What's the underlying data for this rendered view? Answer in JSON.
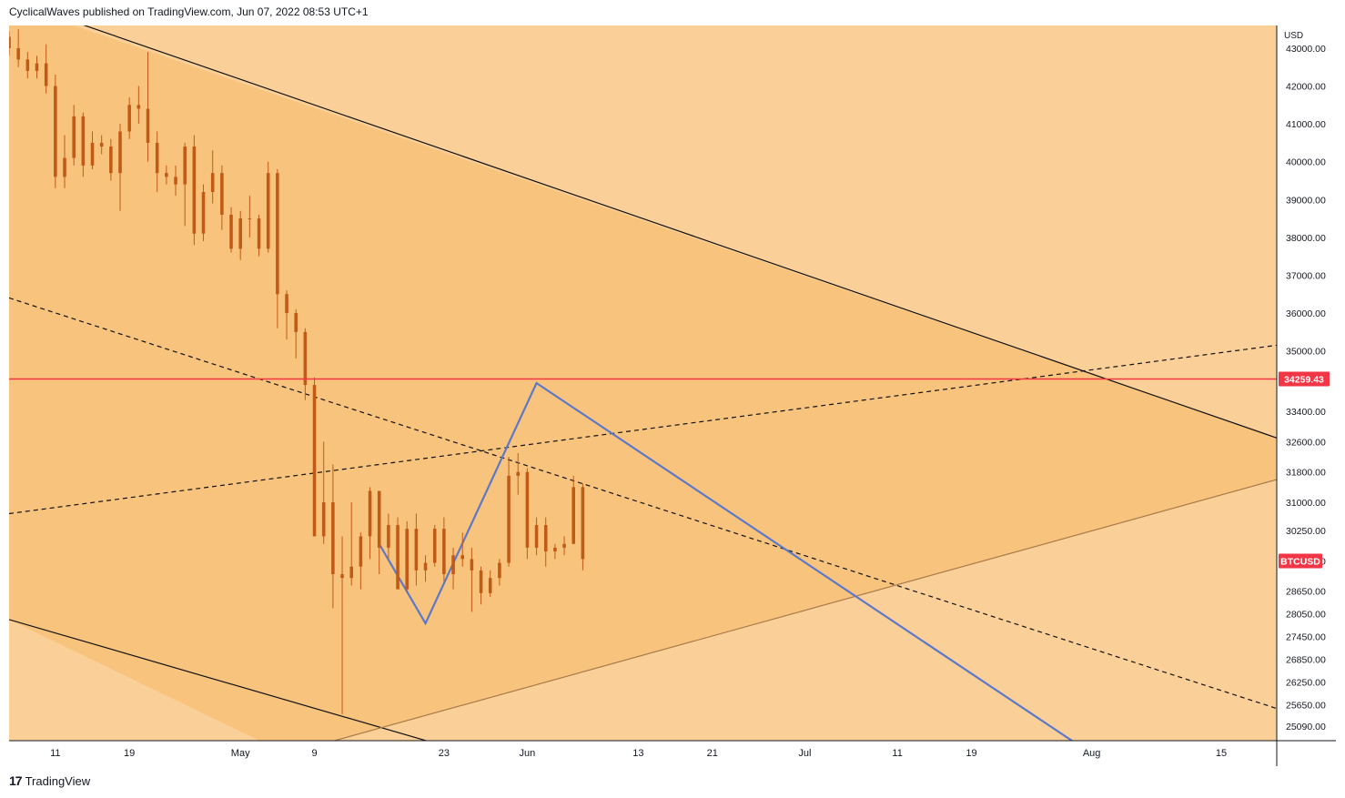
{
  "header": {
    "attribution": "CyclicalWaves published on TradingView.com, Jun 07, 2022 08:53 UTC+1"
  },
  "footer": {
    "brand": "TradingView",
    "logo_text": "17"
  },
  "colors": {
    "background_light": "#fbd098",
    "background_dark": "#f8c47d",
    "candle": "#c05a14",
    "red_line": "#f23645",
    "blue_line": "#5e78c8",
    "trend_line": "#111111",
    "lower_support": "#a97a49"
  },
  "chart_data": {
    "type": "candlestick",
    "symbol": "BTCUSD",
    "price_scale_currency": "USD",
    "horizontal_level": 34259.43,
    "ylim": [
      24700,
      43600
    ],
    "y_ticks": [
      "43000.00",
      "42000.00",
      "41000.00",
      "40000.00",
      "39000.00",
      "38000.00",
      "37000.00",
      "36000.00",
      "35000.00",
      "33400.00",
      "32600.00",
      "31800.00",
      "31000.00",
      "30250.00",
      "29450.00",
      "28650.00",
      "28050.00",
      "27450.00",
      "26850.00",
      "26250.00",
      "25650.00",
      "25090.00"
    ],
    "y_tick_values": [
      43000,
      42000,
      41000,
      40000,
      39000,
      38000,
      37000,
      36000,
      35000,
      33400,
      32600,
      31800,
      31000,
      30250,
      29450,
      28650,
      28050,
      27450,
      26850,
      26250,
      25650,
      25090
    ],
    "x_ticks": [
      "11",
      "19",
      "May",
      "9",
      "23",
      "Jun",
      "13",
      "21",
      "Jul",
      "11",
      "19",
      "Aug",
      "15"
    ],
    "x_tick_dates": [
      "2022-04-11",
      "2022-04-19",
      "2022-05-01",
      "2022-05-09",
      "2022-05-23",
      "2022-06-01",
      "2022-06-13",
      "2022-06-21",
      "2022-07-01",
      "2022-07-11",
      "2022-07-19",
      "2022-08-01",
      "2022-08-15"
    ],
    "xlim": [
      "2022-04-06",
      "2022-08-21"
    ],
    "series": [
      {
        "values": [
          {
            "date": "2022-04-06",
            "open": 43300,
            "high": 43450,
            "low": 42800,
            "close": 43000
          },
          {
            "date": "2022-04-07",
            "open": 43000,
            "high": 43500,
            "low": 42500,
            "close": 42700
          },
          {
            "date": "2022-04-08",
            "open": 42700,
            "high": 42900,
            "low": 42200,
            "close": 42400
          },
          {
            "date": "2022-04-09",
            "open": 42400,
            "high": 42800,
            "low": 42200,
            "close": 42600
          },
          {
            "date": "2022-04-10",
            "open": 42600,
            "high": 43100,
            "low": 41800,
            "close": 42000
          },
          {
            "date": "2022-04-11",
            "open": 42000,
            "high": 42300,
            "low": 39300,
            "close": 39600
          },
          {
            "date": "2022-04-12",
            "open": 39600,
            "high": 40700,
            "low": 39300,
            "close": 40100
          },
          {
            "date": "2022-04-13",
            "open": 40100,
            "high": 41500,
            "low": 39900,
            "close": 41200
          },
          {
            "date": "2022-04-14",
            "open": 41200,
            "high": 41300,
            "low": 39600,
            "close": 39900
          },
          {
            "date": "2022-04-15",
            "open": 39900,
            "high": 40800,
            "low": 39800,
            "close": 40500
          },
          {
            "date": "2022-04-16",
            "open": 40500,
            "high": 40700,
            "low": 40200,
            "close": 40400
          },
          {
            "date": "2022-04-17",
            "open": 40400,
            "high": 40600,
            "low": 39500,
            "close": 39700
          },
          {
            "date": "2022-04-18",
            "open": 39700,
            "high": 41000,
            "low": 38700,
            "close": 40800
          },
          {
            "date": "2022-04-19",
            "open": 40800,
            "high": 41700,
            "low": 40600,
            "close": 41500
          },
          {
            "date": "2022-04-20",
            "open": 41500,
            "high": 42000,
            "low": 41000,
            "close": 41400
          },
          {
            "date": "2022-04-21",
            "open": 41400,
            "high": 42900,
            "low": 40000,
            "close": 40500
          },
          {
            "date": "2022-04-22",
            "open": 40500,
            "high": 40800,
            "low": 39200,
            "close": 39700
          },
          {
            "date": "2022-04-23",
            "open": 39700,
            "high": 39900,
            "low": 39400,
            "close": 39600
          },
          {
            "date": "2022-04-24",
            "open": 39600,
            "high": 39900,
            "low": 39100,
            "close": 39400
          },
          {
            "date": "2022-04-25",
            "open": 39400,
            "high": 40500,
            "low": 38300,
            "close": 40400
          },
          {
            "date": "2022-04-26",
            "open": 40400,
            "high": 40700,
            "low": 37800,
            "close": 38100
          },
          {
            "date": "2022-04-27",
            "open": 38100,
            "high": 39400,
            "low": 37900,
            "close": 39200
          },
          {
            "date": "2022-04-28",
            "open": 39200,
            "high": 40300,
            "low": 38900,
            "close": 39700
          },
          {
            "date": "2022-04-29",
            "open": 39700,
            "high": 39900,
            "low": 38200,
            "close": 38600
          },
          {
            "date": "2022-04-30",
            "open": 38600,
            "high": 38800,
            "low": 37600,
            "close": 37700
          },
          {
            "date": "2022-05-01",
            "open": 37700,
            "high": 38700,
            "low": 37400,
            "close": 38500
          },
          {
            "date": "2022-05-02",
            "open": 38500,
            "high": 39100,
            "low": 38000,
            "close": 38500
          },
          {
            "date": "2022-05-03",
            "open": 38500,
            "high": 38600,
            "low": 37500,
            "close": 37700
          },
          {
            "date": "2022-05-04",
            "open": 37700,
            "high": 40000,
            "low": 37600,
            "close": 39700
          },
          {
            "date": "2022-05-05",
            "open": 39700,
            "high": 39800,
            "low": 35600,
            "close": 36500
          },
          {
            "date": "2022-05-06",
            "open": 36500,
            "high": 36600,
            "low": 35300,
            "close": 36000
          },
          {
            "date": "2022-05-07",
            "open": 36000,
            "high": 36100,
            "low": 34800,
            "close": 35500
          },
          {
            "date": "2022-05-08",
            "open": 35500,
            "high": 35600,
            "low": 33700,
            "close": 34100
          },
          {
            "date": "2022-05-09",
            "open": 34100,
            "high": 34300,
            "low": 30100,
            "close": 30100
          },
          {
            "date": "2022-05-10",
            "open": 30100,
            "high": 32600,
            "low": 29900,
            "close": 31000
          },
          {
            "date": "2022-05-11",
            "open": 31000,
            "high": 32000,
            "low": 28200,
            "close": 29100
          },
          {
            "date": "2022-05-12",
            "open": 29100,
            "high": 30100,
            "low": 25400,
            "close": 29000
          },
          {
            "date": "2022-05-13",
            "open": 29000,
            "high": 31000,
            "low": 28800,
            "close": 29300
          },
          {
            "date": "2022-05-14",
            "open": 29300,
            "high": 30200,
            "low": 28700,
            "close": 30100
          },
          {
            "date": "2022-05-15",
            "open": 30100,
            "high": 31400,
            "low": 29500,
            "close": 31300
          },
          {
            "date": "2022-05-16",
            "open": 31300,
            "high": 31300,
            "low": 29100,
            "close": 29800
          },
          {
            "date": "2022-05-17",
            "open": 29800,
            "high": 30700,
            "low": 29500,
            "close": 30400
          },
          {
            "date": "2022-05-18",
            "open": 30400,
            "high": 30600,
            "low": 28700,
            "close": 28700
          },
          {
            "date": "2022-05-19",
            "open": 28700,
            "high": 30500,
            "low": 28600,
            "close": 30300
          },
          {
            "date": "2022-05-20",
            "open": 30300,
            "high": 30700,
            "low": 28800,
            "close": 29200
          },
          {
            "date": "2022-05-21",
            "open": 29200,
            "high": 29600,
            "low": 28900,
            "close": 29400
          },
          {
            "date": "2022-05-22",
            "open": 29400,
            "high": 30400,
            "low": 29300,
            "close": 30300
          },
          {
            "date": "2022-05-23",
            "open": 30300,
            "high": 30600,
            "low": 28900,
            "close": 29100
          },
          {
            "date": "2022-05-24",
            "open": 29100,
            "high": 29800,
            "low": 28700,
            "close": 29600
          },
          {
            "date": "2022-05-25",
            "open": 29600,
            "high": 30200,
            "low": 29300,
            "close": 29500
          },
          {
            "date": "2022-05-26",
            "open": 29500,
            "high": 29800,
            "low": 28100,
            "close": 29200
          },
          {
            "date": "2022-05-27",
            "open": 29200,
            "high": 29300,
            "low": 28300,
            "close": 28600
          },
          {
            "date": "2022-05-28",
            "open": 28600,
            "high": 29200,
            "low": 28500,
            "close": 29000
          },
          {
            "date": "2022-05-29",
            "open": 29000,
            "high": 29500,
            "low": 28800,
            "close": 29400
          },
          {
            "date": "2022-05-30",
            "open": 29400,
            "high": 32200,
            "low": 29300,
            "close": 31700
          },
          {
            "date": "2022-05-31",
            "open": 31700,
            "high": 32300,
            "low": 31200,
            "close": 31800
          },
          {
            "date": "2022-06-01",
            "open": 31800,
            "high": 31900,
            "low": 29500,
            "close": 29800
          },
          {
            "date": "2022-06-02",
            "open": 29800,
            "high": 30600,
            "low": 29600,
            "close": 30400
          },
          {
            "date": "2022-06-03",
            "open": 30400,
            "high": 30600,
            "low": 29300,
            "close": 29700
          },
          {
            "date": "2022-06-04",
            "open": 29700,
            "high": 29900,
            "low": 29500,
            "close": 29800
          },
          {
            "date": "2022-06-05",
            "open": 29800,
            "high": 30100,
            "low": 29600,
            "close": 29900
          },
          {
            "date": "2022-06-06",
            "open": 29900,
            "high": 31700,
            "low": 29900,
            "close": 31400
          },
          {
            "date": "2022-06-07",
            "open": 31400,
            "high": 31500,
            "low": 29200,
            "close": 29500
          }
        ]
      }
    ],
    "drawings": [
      {
        "kind": "trend_line",
        "style": "solid",
        "color": "#111111",
        "from": {
          "date": "2022-04-13",
          "price": 43700
        },
        "to": {
          "date": "2022-08-21",
          "price": 32700
        }
      },
      {
        "kind": "trend_line",
        "style": "solid",
        "color": "#111111",
        "from": {
          "date": "2022-04-06",
          "price": 27900
        },
        "to": {
          "date": "2022-05-26",
          "price": 24350
        }
      },
      {
        "kind": "trend_line",
        "style": "dashed",
        "color": "#111111",
        "from": {
          "date": "2022-04-06",
          "price": 36400
        },
        "to": {
          "date": "2022-08-21",
          "price": 25550
        }
      },
      {
        "kind": "trend_line",
        "style": "dashed",
        "color": "#111111",
        "from": {
          "date": "2022-04-06",
          "price": 30700
        },
        "to": {
          "date": "2022-08-21",
          "price": 35150
        }
      },
      {
        "kind": "trend_line",
        "style": "solid",
        "color": "#a97a49",
        "from": {
          "date": "2022-05-06",
          "price": 24350
        },
        "to": {
          "date": "2022-08-21",
          "price": 31600
        }
      },
      {
        "kind": "polyline",
        "style": "solid",
        "color": "#5e78c8",
        "points": [
          {
            "date": "2022-05-16",
            "price": 29900
          },
          {
            "date": "2022-05-21",
            "price": 27800
          },
          {
            "date": "2022-06-02",
            "price": 34150
          },
          {
            "date": "2022-08-01",
            "price": 24350
          }
        ]
      }
    ],
    "fills": [
      {
        "color": "#f8c47d",
        "points": [
          {
            "date": "2022-04-06",
            "price": 43600
          },
          {
            "date": "2022-04-13",
            "price": 43600
          },
          {
            "date": "2022-08-21",
            "price": 32700
          },
          {
            "date": "2022-08-21",
            "price": 31600
          },
          {
            "date": "2022-05-06",
            "price": 24350
          },
          {
            "date": "2022-04-06",
            "price": 27900
          }
        ]
      }
    ],
    "labels": [
      {
        "text": "34259.43",
        "price": 34259.43,
        "color": "#f23645"
      },
      {
        "text": "BTCUSD",
        "price": 29450,
        "color": "#f23645"
      }
    ]
  }
}
